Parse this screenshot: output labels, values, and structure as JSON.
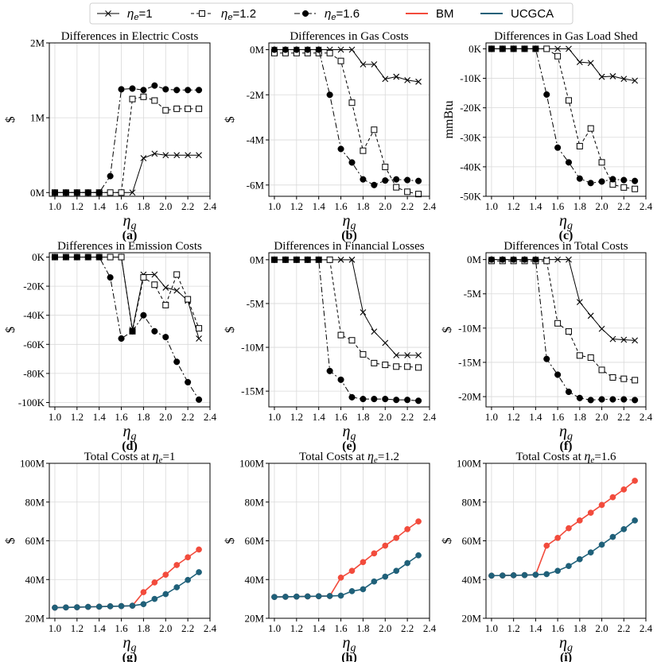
{
  "legend": {
    "entries": [
      {
        "id": "e1",
        "eta": "η",
        "sub": "e",
        "rest": "=1",
        "color": "#000000",
        "dash": "",
        "marker": "x"
      },
      {
        "id": "e12",
        "eta": "η",
        "sub": "e",
        "rest": "=1.2",
        "color": "#000000",
        "dash": "4,3",
        "marker": "square"
      },
      {
        "id": "e16",
        "eta": "η",
        "sub": "e",
        "rest": "=1.6",
        "color": "#000000",
        "dash": "7,3,2,3",
        "marker": "circle"
      },
      {
        "id": "bm",
        "label": "BM",
        "color": "#f24b3c",
        "dash": "",
        "marker": "none"
      },
      {
        "id": "ucgca",
        "label": "UCGCA",
        "color": "#1f6079",
        "dash": "",
        "marker": "none"
      }
    ]
  },
  "x_axis_symbol": {
    "main": "η",
    "sub": "g"
  },
  "chart_data": [
    {
      "type": "line",
      "panel": "(a)",
      "title": "Differences in Electric Costs",
      "ylabel": "$",
      "ylim": [
        -0.05,
        2.0
      ],
      "yticks": [
        0,
        1,
        2
      ],
      "yticklabels": [
        "0M",
        "1M",
        "2M"
      ],
      "xlim": [
        0.95,
        2.4
      ],
      "xticks": [
        1.0,
        1.2,
        1.4,
        1.6,
        1.8,
        2.0,
        2.2,
        2.4
      ],
      "xticklabels": [
        "1.0",
        "1.2",
        "1.4",
        "1.6",
        "1.8",
        "2.0",
        "2.2",
        "2.4"
      ],
      "x": [
        1.0,
        1.1,
        1.2,
        1.3,
        1.4,
        1.5,
        1.6,
        1.7,
        1.8,
        1.9,
        2.0,
        2.1,
        2.2,
        2.3
      ],
      "series": [
        {
          "name": "ηe=1",
          "style": "e1",
          "values": [
            0,
            0,
            0,
            0,
            0,
            0,
            0,
            0,
            0.46,
            0.52,
            0.5,
            0.5,
            0.5,
            0.5
          ]
        },
        {
          "name": "ηe=1.2",
          "style": "e12",
          "values": [
            0,
            0,
            0,
            0,
            0,
            0,
            0,
            1.25,
            1.28,
            1.23,
            1.1,
            1.12,
            1.12,
            1.12
          ]
        },
        {
          "name": "ηe=1.6",
          "style": "e16",
          "values": [
            0,
            0,
            0,
            0,
            0,
            0.22,
            1.38,
            1.39,
            1.37,
            1.43,
            1.38,
            1.37,
            1.37,
            1.37
          ]
        }
      ]
    },
    {
      "type": "line",
      "panel": "(b)",
      "title": "Differences in Gas Costs",
      "ylabel": "$",
      "ylim": [
        -6.5,
        0.3
      ],
      "yticks": [
        0,
        -2,
        -4,
        -6
      ],
      "yticklabels": [
        "0M",
        "-2M",
        "-4M",
        "-6M"
      ],
      "xlim": [
        0.95,
        2.4
      ],
      "xticks": [
        1.0,
        1.2,
        1.4,
        1.6,
        1.8,
        2.0,
        2.2,
        2.4
      ],
      "xticklabels": [
        "1.0",
        "1.2",
        "1.4",
        "1.6",
        "1.8",
        "2.0",
        "2.2",
        "2.4"
      ],
      "x": [
        1.0,
        1.1,
        1.2,
        1.3,
        1.4,
        1.5,
        1.6,
        1.7,
        1.8,
        1.9,
        2.0,
        2.1,
        2.2,
        2.3
      ],
      "series": [
        {
          "name": "ηe=1",
          "style": "e1",
          "values": [
            0,
            0,
            0,
            0,
            0,
            0,
            0,
            0,
            -0.65,
            -0.65,
            -1.3,
            -1.2,
            -1.35,
            -1.42
          ]
        },
        {
          "name": "ηe=1.2",
          "style": "e12",
          "values": [
            -0.15,
            -0.15,
            -0.15,
            -0.15,
            -0.15,
            -0.15,
            -0.5,
            -2.35,
            -4.48,
            -3.55,
            -5.2,
            -6.1,
            -6.3,
            -6.4
          ]
        },
        {
          "name": "ηe=1.6",
          "style": "e16",
          "values": [
            0,
            0,
            0,
            0,
            0,
            -2.0,
            -4.4,
            -5.0,
            -5.75,
            -6.0,
            -5.8,
            -5.75,
            -5.78,
            -5.82
          ]
        }
      ]
    },
    {
      "type": "line",
      "panel": "(c)",
      "title": "Differences in Gas Load Shed",
      "ylabel": "mmBtu",
      "ylim": [
        -50,
        2
      ],
      "yticks": [
        0,
        -10,
        -20,
        -30,
        -40,
        -50
      ],
      "yticklabels": [
        "0K",
        "-10K",
        "-20K",
        "-30K",
        "-40K",
        "-50K"
      ],
      "xlim": [
        0.95,
        2.4
      ],
      "xticks": [
        1.0,
        1.2,
        1.4,
        1.6,
        1.8,
        2.0,
        2.2,
        2.4
      ],
      "xticklabels": [
        "1.0",
        "1.2",
        "1.4",
        "1.6",
        "1.8",
        "2.0",
        "2.2",
        "2.4"
      ],
      "x": [
        1.0,
        1.1,
        1.2,
        1.3,
        1.4,
        1.5,
        1.6,
        1.7,
        1.8,
        1.9,
        2.0,
        2.1,
        2.2,
        2.3
      ],
      "series": [
        {
          "name": "ηe=1",
          "style": "e1",
          "values": [
            0,
            0,
            0,
            0,
            0,
            0,
            0,
            0,
            -4.5,
            -4.8,
            -9.5,
            -9.3,
            -10.2,
            -10.8
          ]
        },
        {
          "name": "ηe=1.2",
          "style": "e12",
          "values": [
            0,
            0,
            0,
            0,
            0,
            0,
            -2.5,
            -17.5,
            -33,
            -27,
            -38.5,
            -46,
            -47,
            -47.5
          ]
        },
        {
          "name": "ηe=1.6",
          "style": "e16",
          "values": [
            0,
            0,
            0,
            0,
            0,
            -15.5,
            -33.5,
            -38.5,
            -44,
            -45.5,
            -45,
            -44.2,
            -44.5,
            -44.8
          ]
        }
      ]
    },
    {
      "type": "line",
      "panel": "(d)",
      "title": "Differences in Emission Costs",
      "ylabel": "$",
      "ylim": [
        -103,
        3
      ],
      "yticks": [
        0,
        -20,
        -40,
        -60,
        -80,
        -100
      ],
      "yticklabels": [
        "0K",
        "-20K",
        "-40K",
        "-60K",
        "-80K",
        "-100K"
      ],
      "xlim": [
        0.95,
        2.4
      ],
      "xticks": [
        1.0,
        1.2,
        1.4,
        1.6,
        1.8,
        2.0,
        2.2,
        2.4
      ],
      "xticklabels": [
        "1.0",
        "1.2",
        "1.4",
        "1.6",
        "1.8",
        "2.0",
        "2.2",
        "2.4"
      ],
      "x": [
        1.0,
        1.1,
        1.2,
        1.3,
        1.4,
        1.5,
        1.6,
        1.7,
        1.8,
        1.9,
        2.0,
        2.1,
        2.2,
        2.3
      ],
      "series": [
        {
          "name": "ηe=1",
          "style": "e1",
          "values": [
            0,
            0,
            0,
            0,
            0,
            0,
            0,
            -50,
            -12,
            -12,
            -21,
            -23,
            -30,
            -56
          ]
        },
        {
          "name": "ηe=1.2",
          "style": "e12",
          "values": [
            0,
            0,
            0,
            0,
            0,
            0,
            0,
            -51,
            -14,
            -19,
            -33,
            -12,
            -29,
            -49
          ]
        },
        {
          "name": "ηe=1.6",
          "style": "e16",
          "values": [
            0,
            0,
            0,
            0,
            0,
            -14,
            -56,
            -51,
            -40,
            -51,
            -55,
            -72,
            -86,
            -98
          ]
        }
      ]
    },
    {
      "type": "line",
      "panel": "(e)",
      "title": "Differences in Financial Losses",
      "ylabel": "$",
      "ylim": [
        -16.8,
        0.8
      ],
      "yticks": [
        0,
        -5,
        -10,
        -15
      ],
      "yticklabels": [
        "0M",
        "-5M",
        "-10M",
        "-15M"
      ],
      "xlim": [
        0.95,
        2.4
      ],
      "xticks": [
        1.0,
        1.2,
        1.4,
        1.6,
        1.8,
        2.0,
        2.2,
        2.4
      ],
      "xticklabels": [
        "1.0",
        "1.2",
        "1.4",
        "1.6",
        "1.8",
        "2.0",
        "2.2",
        "2.4"
      ],
      "x": [
        1.0,
        1.1,
        1.2,
        1.3,
        1.4,
        1.5,
        1.6,
        1.7,
        1.8,
        1.9,
        2.0,
        2.1,
        2.2,
        2.3
      ],
      "series": [
        {
          "name": "ηe=1",
          "style": "e1",
          "values": [
            0,
            0,
            0,
            0,
            0,
            0,
            0,
            0,
            -6,
            -8.2,
            -9.5,
            -10.9,
            -10.9,
            -10.9
          ]
        },
        {
          "name": "ηe=1.2",
          "style": "e12",
          "values": [
            0,
            0,
            0,
            0,
            0,
            0,
            -8.6,
            -9.2,
            -10.8,
            -11.8,
            -12.0,
            -12.2,
            -12.2,
            -12.3
          ]
        },
        {
          "name": "ηe=1.6",
          "style": "e16",
          "values": [
            0,
            0,
            0,
            0,
            0,
            -12.7,
            -13.7,
            -15.7,
            -15.9,
            -15.9,
            -15.9,
            -16.0,
            -16.0,
            -16.1
          ]
        }
      ]
    },
    {
      "type": "line",
      "panel": "(f)",
      "title": "Differences in Total Costs",
      "ylabel": "$",
      "ylim": [
        -21.5,
        1.0
      ],
      "yticks": [
        0,
        -5,
        -10,
        -15,
        -20
      ],
      "yticklabels": [
        "0M",
        "-5M",
        "-10M",
        "-15M",
        "-20M"
      ],
      "xlim": [
        0.95,
        2.4
      ],
      "xticks": [
        1.0,
        1.2,
        1.4,
        1.6,
        1.8,
        2.0,
        2.2,
        2.4
      ],
      "xticklabels": [
        "1.0",
        "1.2",
        "1.4",
        "1.6",
        "1.8",
        "2.0",
        "2.2",
        "2.4"
      ],
      "x": [
        1.0,
        1.1,
        1.2,
        1.3,
        1.4,
        1.5,
        1.6,
        1.7,
        1.8,
        1.9,
        2.0,
        2.1,
        2.2,
        2.3
      ],
      "series": [
        {
          "name": "ηe=1",
          "style": "e1",
          "values": [
            0,
            0,
            0,
            0,
            0,
            0,
            0,
            0,
            -6.2,
            -8.2,
            -10.1,
            -11.6,
            -11.7,
            -11.8
          ]
        },
        {
          "name": "ηe=1.2",
          "style": "e12",
          "values": [
            -0.2,
            -0.2,
            -0.2,
            -0.2,
            -0.2,
            -0.2,
            -9.3,
            -10.5,
            -14.0,
            -14.3,
            -16.1,
            -17.2,
            -17.4,
            -17.6
          ]
        },
        {
          "name": "ηe=1.6",
          "style": "e16",
          "values": [
            0,
            0,
            0,
            0,
            0,
            -14.5,
            -16.8,
            -19.3,
            -20.2,
            -20.5,
            -20.4,
            -20.4,
            -20.4,
            -20.5
          ]
        }
      ]
    },
    {
      "type": "line",
      "panel": "(g)",
      "title_main": "Total Costs at ",
      "eta": "η",
      "eta_sub": "e",
      "eta_val": "=1",
      "ylabel": "$",
      "ylim": [
        20,
        100
      ],
      "yticks": [
        20,
        40,
        60,
        80,
        100
      ],
      "yticklabels": [
        "20M",
        "40M",
        "60M",
        "80M",
        "100M"
      ],
      "xlim": [
        0.95,
        2.4
      ],
      "xticks": [
        1.0,
        1.2,
        1.4,
        1.6,
        1.8,
        2.0,
        2.2,
        2.4
      ],
      "xticklabels": [
        "1.0",
        "1.2",
        "1.4",
        "1.6",
        "1.8",
        "2.0",
        "2.2",
        "2.4"
      ],
      "x": [
        1.0,
        1.1,
        1.2,
        1.3,
        1.4,
        1.5,
        1.6,
        1.7,
        1.8,
        1.9,
        2.0,
        2.1,
        2.2,
        2.3
      ],
      "series": [
        {
          "name": "BM",
          "style": "bm",
          "values": [
            25.5,
            25.6,
            25.7,
            25.9,
            26.0,
            26.2,
            26.3,
            26.5,
            33.5,
            38.5,
            42.5,
            47.5,
            51.5,
            55.5
          ]
        },
        {
          "name": "UCGCA",
          "style": "ucgca",
          "values": [
            25.5,
            25.6,
            25.7,
            25.9,
            26.0,
            26.2,
            26.3,
            26.5,
            27.3,
            30.0,
            32.5,
            36.0,
            39.8,
            43.8
          ]
        }
      ]
    },
    {
      "type": "line",
      "panel": "(h)",
      "title_main": "Total Costs at ",
      "eta": "η",
      "eta_sub": "e",
      "eta_val": "=1.2",
      "ylabel": "$",
      "ylim": [
        20,
        100
      ],
      "yticks": [
        20,
        40,
        60,
        80,
        100
      ],
      "yticklabels": [
        "20M",
        "40M",
        "60M",
        "80M",
        "100M"
      ],
      "xlim": [
        0.95,
        2.4
      ],
      "xticks": [
        1.0,
        1.2,
        1.4,
        1.6,
        1.8,
        2.0,
        2.2,
        2.4
      ],
      "xticklabels": [
        "1.0",
        "1.2",
        "1.4",
        "1.6",
        "1.8",
        "2.0",
        "2.2",
        "2.4"
      ],
      "x": [
        1.0,
        1.1,
        1.2,
        1.3,
        1.4,
        1.5,
        1.6,
        1.7,
        1.8,
        1.9,
        2.0,
        2.1,
        2.2,
        2.3
      ],
      "series": [
        {
          "name": "BM",
          "style": "bm",
          "values": [
            31.0,
            31.1,
            31.2,
            31.3,
            31.4,
            31.5,
            41.0,
            44.5,
            49.0,
            53.5,
            57.5,
            61.5,
            66.0,
            70.0
          ]
        },
        {
          "name": "UCGCA",
          "style": "ucgca",
          "values": [
            31.0,
            31.1,
            31.2,
            31.3,
            31.4,
            31.5,
            31.7,
            34.0,
            35.0,
            39.0,
            41.5,
            44.5,
            48.5,
            52.5
          ]
        }
      ]
    },
    {
      "type": "line",
      "panel": "(i)",
      "title_main": "Total Costs at ",
      "eta": "η",
      "eta_sub": "e",
      "eta_val": "=1.6",
      "ylabel": "$",
      "ylim": [
        20,
        100
      ],
      "yticks": [
        20,
        40,
        60,
        80,
        100
      ],
      "yticklabels": [
        "20M",
        "40M",
        "60M",
        "80M",
        "100M"
      ],
      "xlim": [
        0.95,
        2.4
      ],
      "xticks": [
        1.0,
        1.2,
        1.4,
        1.6,
        1.8,
        2.0,
        2.2,
        2.4
      ],
      "xticklabels": [
        "1.0",
        "1.2",
        "1.4",
        "1.6",
        "1.8",
        "2.0",
        "2.2",
        "2.4"
      ],
      "x": [
        1.0,
        1.1,
        1.2,
        1.3,
        1.4,
        1.5,
        1.6,
        1.7,
        1.8,
        1.9,
        2.0,
        2.1,
        2.2,
        2.3
      ],
      "series": [
        {
          "name": "BM",
          "style": "bm",
          "values": [
            42.0,
            42.1,
            42.2,
            42.3,
            42.5,
            57.5,
            61.5,
            66.5,
            70.5,
            74.5,
            78.5,
            82.5,
            86.5,
            91.0
          ]
        },
        {
          "name": "UCGCA",
          "style": "ucgca",
          "values": [
            42.0,
            42.1,
            42.2,
            42.3,
            42.5,
            42.8,
            44.5,
            47.0,
            50.5,
            54.0,
            58.0,
            62.0,
            66.0,
            70.5
          ]
        }
      ]
    }
  ]
}
